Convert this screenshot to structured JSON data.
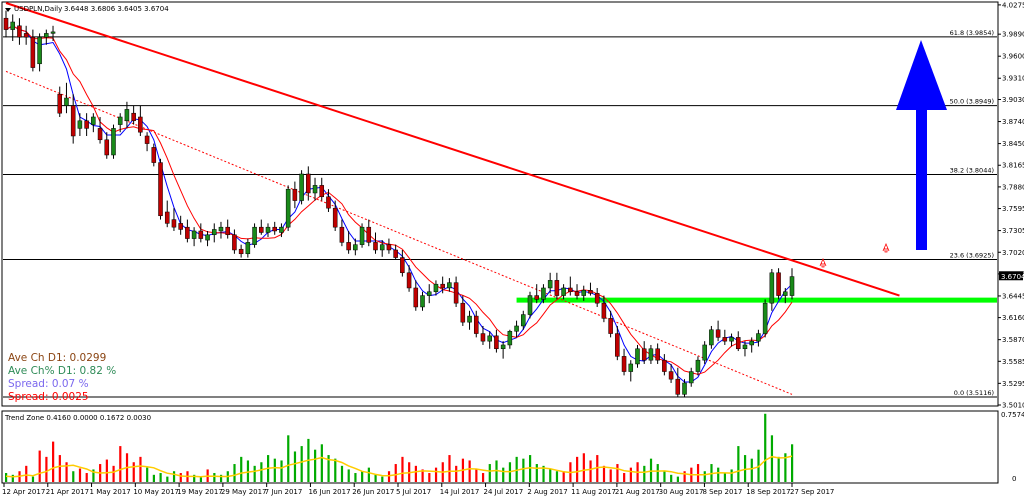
{
  "header": {
    "symbol": "USDPLN,Daily",
    "ohlc": "3.6448 3.6806 3.6405 3.6704"
  },
  "info": {
    "ave_ch": "Ave Ch D1: 0.0299",
    "ave_ch_pct": "Ave Ch% D1: 0.82 %",
    "spread_pct": "Spread: 0.07 %",
    "spread": "Spread: 0.0025"
  },
  "indicator": {
    "label": "Trend Zone 0.4160 0.0000 0.1672 0.0030",
    "max_label": "0.7574",
    "zero_label": "0"
  },
  "colors": {
    "bull": "#1a8a1a",
    "bear": "#c00000",
    "trendline": "#ff0000",
    "support": "#00ff00",
    "arrow": "#0000ff",
    "ma_fast": "#0000ff",
    "ma_slow": "#ff0000",
    "fibo": "#000000",
    "zone_up": "#00aa00",
    "zone_down": "#ff0000",
    "zone_line": "#ffcc00",
    "info_brown": "#8b4513",
    "info_green": "#2e8b57",
    "info_blue": "#7b68ee",
    "info_red": "#ff0000"
  },
  "chart_data": {
    "type": "candlestick",
    "ylim": [
      3.501,
      4.03
    ],
    "y_ticks": [
      "4.0275",
      "3.9890",
      "3.9600",
      "3.9310",
      "3.9030",
      "3.8740",
      "3.8450",
      "3.8165",
      "3.7880",
      "3.7595",
      "3.7305",
      "3.7020",
      "3.6735",
      "3.6445",
      "3.6160",
      "3.5870",
      "3.5585",
      "3.5295",
      "3.5010"
    ],
    "x_labels": [
      "12 Apr 2017",
      "21 Apr 2017",
      "1 May 2017",
      "10 May 2017",
      "19 May 2017",
      "29 May 2017",
      "7 Jun 2017",
      "16 Jun 2017",
      "26 Jun 2017",
      "5 Jul 2017",
      "14 Jul 2017",
      "24 Jul 2017",
      "2 Aug 2017",
      "11 Aug 2017",
      "21 Aug 2017",
      "30 Aug 2017",
      "8 Sep 2017",
      "18 Sep 2017",
      "27 Sep 2017"
    ],
    "current_price": "3.6704",
    "fibo_levels": [
      {
        "label": "61.8 (3.9854)",
        "price": 3.9854
      },
      {
        "label": "50.0 (3.8949)",
        "price": 3.8949
      },
      {
        "label": "38.2 (3.8044)",
        "price": 3.8044
      },
      {
        "label": "23.6 (3.6925)",
        "price": 3.6925
      },
      {
        "label": "0.0 (3.5116)",
        "price": 3.5116
      }
    ],
    "support_level": 3.639,
    "trendline": {
      "from_bar": 0,
      "from_price": 4.03,
      "to_bar": 133,
      "to_price": 3.645
    },
    "channel_line": {
      "from_bar": 0,
      "from_price": 3.94,
      "to_bar": 117,
      "to_price": 3.515
    },
    "candles_ohlc": [
      [
        4.01,
        4.02,
        3.985,
        3.995
      ],
      [
        3.995,
        4.015,
        3.98,
        4.005
      ],
      [
        4.0,
        4.01,
        3.975,
        3.985
      ],
      [
        3.99,
        4.0,
        3.975,
        3.985
      ],
      [
        3.985,
        3.995,
        3.94,
        3.945
      ],
      [
        3.95,
        3.99,
        3.94,
        3.985
      ],
      [
        3.985,
        3.995,
        3.975,
        3.99
      ],
      [
        3.99,
        4.0,
        3.98,
        3.992
      ],
      [
        3.91,
        3.92,
        3.88,
        3.885
      ],
      [
        3.895,
        3.925,
        3.885,
        3.905
      ],
      [
        3.895,
        3.91,
        3.845,
        3.855
      ],
      [
        3.865,
        3.885,
        3.855,
        3.875
      ],
      [
        3.875,
        3.885,
        3.855,
        3.865
      ],
      [
        3.87,
        3.885,
        3.86,
        3.88
      ],
      [
        3.865,
        3.88,
        3.845,
        3.85
      ],
      [
        3.85,
        3.86,
        3.825,
        3.83
      ],
      [
        3.83,
        3.87,
        3.825,
        3.865
      ],
      [
        3.87,
        3.885,
        3.86,
        3.88
      ],
      [
        3.875,
        3.9,
        3.865,
        3.89
      ],
      [
        3.885,
        3.895,
        3.87,
        3.875
      ],
      [
        3.88,
        3.895,
        3.855,
        3.86
      ],
      [
        3.855,
        3.86,
        3.835,
        3.845
      ],
      [
        3.84,
        3.845,
        3.815,
        3.82
      ],
      [
        3.82,
        3.825,
        3.745,
        3.75
      ],
      [
        3.755,
        3.77,
        3.735,
        3.74
      ],
      [
        3.745,
        3.76,
        3.73,
        3.735
      ],
      [
        3.74,
        3.75,
        3.725,
        3.732
      ],
      [
        3.735,
        3.745,
        3.715,
        3.72
      ],
      [
        3.72,
        3.735,
        3.71,
        3.73
      ],
      [
        3.73,
        3.74,
        3.715,
        3.72
      ],
      [
        3.718,
        3.73,
        3.71,
        3.725
      ],
      [
        3.725,
        3.74,
        3.715,
        3.732
      ],
      [
        3.73,
        3.742,
        3.72,
        3.735
      ],
      [
        3.735,
        3.745,
        3.72,
        3.725
      ],
      [
        3.725,
        3.732,
        3.7,
        3.705
      ],
      [
        3.706,
        3.712,
        3.695,
        3.7
      ],
      [
        3.7,
        3.72,
        3.695,
        3.715
      ],
      [
        3.712,
        3.74,
        3.708,
        3.735
      ],
      [
        3.735,
        3.745,
        3.725,
        3.728
      ],
      [
        3.728,
        3.74,
        3.722,
        3.735
      ],
      [
        3.735,
        3.742,
        3.725,
        3.73
      ],
      [
        3.728,
        3.74,
        3.722,
        3.735
      ],
      [
        3.735,
        3.79,
        3.73,
        3.785
      ],
      [
        3.785,
        3.795,
        3.76,
        3.77
      ],
      [
        3.77,
        3.81,
        3.765,
        3.805
      ],
      [
        3.805,
        3.815,
        3.77,
        3.78
      ],
      [
        3.78,
        3.8,
        3.77,
        3.79
      ],
      [
        3.79,
        3.8,
        3.77,
        3.775
      ],
      [
        3.775,
        3.785,
        3.755,
        3.76
      ],
      [
        3.76,
        3.77,
        3.73,
        3.735
      ],
      [
        3.735,
        3.745,
        3.71,
        3.715
      ],
      [
        3.715,
        3.73,
        3.7,
        3.705
      ],
      [
        3.705,
        3.72,
        3.698,
        3.712
      ],
      [
        3.712,
        3.74,
        3.708,
        3.735
      ],
      [
        3.735,
        3.745,
        3.71,
        3.715
      ],
      [
        3.715,
        3.728,
        3.7,
        3.705
      ],
      [
        3.705,
        3.718,
        3.696,
        3.712
      ],
      [
        3.712,
        3.72,
        3.7,
        3.705
      ],
      [
        3.705,
        3.712,
        3.692,
        3.695
      ],
      [
        3.695,
        3.705,
        3.67,
        3.675
      ],
      [
        3.675,
        3.685,
        3.65,
        3.655
      ],
      [
        3.655,
        3.665,
        3.625,
        3.63
      ],
      [
        3.63,
        3.65,
        3.625,
        3.645
      ],
      [
        3.645,
        3.66,
        3.635,
        3.65
      ],
      [
        3.65,
        3.665,
        3.645,
        3.66
      ],
      [
        3.66,
        3.67,
        3.648,
        3.655
      ],
      [
        3.655,
        3.668,
        3.65,
        3.662
      ],
      [
        3.662,
        3.67,
        3.63,
        3.635
      ],
      [
        3.635,
        3.645,
        3.605,
        3.61
      ],
      [
        3.61,
        3.625,
        3.6,
        3.618
      ],
      [
        3.618,
        3.625,
        3.59,
        3.595
      ],
      [
        3.595,
        3.605,
        3.58,
        3.585
      ],
      [
        3.585,
        3.598,
        3.575,
        3.592
      ],
      [
        3.592,
        3.6,
        3.57,
        3.575
      ],
      [
        3.575,
        3.585,
        3.562,
        3.58
      ],
      [
        3.58,
        3.6,
        3.575,
        3.598
      ],
      [
        3.598,
        3.612,
        3.59,
        3.605
      ],
      [
        3.605,
        3.625,
        3.6,
        3.62
      ],
      [
        3.62,
        3.65,
        3.615,
        3.645
      ],
      [
        3.645,
        3.66,
        3.635,
        3.64
      ],
      [
        3.64,
        3.66,
        3.635,
        3.655
      ],
      [
        3.655,
        3.675,
        3.648,
        3.665
      ],
      [
        3.665,
        3.675,
        3.64,
        3.645
      ],
      [
        3.645,
        3.66,
        3.64,
        3.655
      ],
      [
        3.655,
        3.67,
        3.645,
        3.65
      ],
      [
        3.65,
        3.66,
        3.64,
        3.645
      ],
      [
        3.645,
        3.658,
        3.638,
        3.652
      ],
      [
        3.652,
        3.662,
        3.645,
        3.648
      ],
      [
        3.648,
        3.655,
        3.63,
        3.635
      ],
      [
        3.635,
        3.645,
        3.61,
        3.615
      ],
      [
        3.615,
        3.625,
        3.59,
        3.595
      ],
      [
        3.595,
        3.605,
        3.56,
        3.565
      ],
      [
        3.565,
        3.575,
        3.54,
        3.545
      ],
      [
        3.545,
        3.56,
        3.532,
        3.555
      ],
      [
        3.555,
        3.58,
        3.55,
        3.575
      ],
      [
        3.575,
        3.585,
        3.555,
        3.56
      ],
      [
        3.56,
        3.58,
        3.555,
        3.575
      ],
      [
        3.575,
        3.582,
        3.555,
        3.56
      ],
      [
        3.56,
        3.568,
        3.54,
        3.545
      ],
      [
        3.545,
        3.555,
        3.53,
        3.535
      ],
      [
        3.535,
        3.55,
        3.512,
        3.515
      ],
      [
        3.515,
        3.535,
        3.512,
        3.53
      ],
      [
        3.53,
        3.55,
        3.525,
        3.545
      ],
      [
        3.545,
        3.565,
        3.54,
        3.56
      ],
      [
        3.56,
        3.585,
        3.555,
        3.58
      ],
      [
        3.58,
        3.605,
        3.575,
        3.6
      ],
      [
        3.6,
        3.612,
        3.585,
        3.59
      ],
      [
        3.59,
        3.6,
        3.58,
        3.585
      ],
      [
        3.585,
        3.595,
        3.578,
        3.59
      ],
      [
        3.59,
        3.598,
        3.572,
        3.575
      ],
      [
        3.575,
        3.585,
        3.565,
        3.58
      ],
      [
        3.58,
        3.59,
        3.57,
        3.585
      ],
      [
        3.585,
        3.6,
        3.578,
        3.595
      ],
      [
        3.595,
        3.64,
        3.59,
        3.635
      ],
      [
        3.635,
        3.68,
        3.625,
        3.675
      ],
      [
        3.675,
        3.681,
        3.64,
        3.645
      ],
      [
        3.645,
        3.655,
        3.635,
        3.65
      ],
      [
        3.645,
        3.681,
        3.64,
        3.67
      ]
    ],
    "zone_values": [
      [
        0.1,
        0.0
      ],
      [
        0.08,
        0.0
      ],
      [
        0.0,
        0.12
      ],
      [
        0.0,
        0.18
      ],
      [
        0.06,
        0.0
      ],
      [
        0.0,
        0.35
      ],
      [
        0.0,
        0.28
      ],
      [
        0.0,
        0.45
      ],
      [
        0.0,
        0.3
      ],
      [
        0.0,
        0.22
      ],
      [
        0.12,
        0.0
      ],
      [
        0.0,
        0.15
      ],
      [
        0.0,
        0.1
      ],
      [
        0.14,
        0.0
      ],
      [
        0.0,
        0.2
      ],
      [
        0.0,
        0.25
      ],
      [
        0.0,
        0.18
      ],
      [
        0.0,
        0.4
      ],
      [
        0.0,
        0.32
      ],
      [
        0.0,
        0.22
      ],
      [
        0.0,
        0.28
      ],
      [
        0.16,
        0.0
      ],
      [
        0.08,
        0.0
      ],
      [
        0.1,
        0.0
      ],
      [
        0.06,
        0.0
      ],
      [
        0.12,
        0.0
      ],
      [
        0.0,
        0.1
      ],
      [
        0.0,
        0.12
      ],
      [
        0.08,
        0.0
      ],
      [
        0.05,
        0.0
      ],
      [
        0.0,
        0.14
      ],
      [
        0.1,
        0.0
      ],
      [
        0.08,
        0.0
      ],
      [
        0.12,
        0.0
      ],
      [
        0.2,
        0.0
      ],
      [
        0.28,
        0.0
      ],
      [
        0.24,
        0.0
      ],
      [
        0.18,
        0.0
      ],
      [
        0.22,
        0.0
      ],
      [
        0.3,
        0.0
      ],
      [
        0.26,
        0.0
      ],
      [
        0.24,
        0.0
      ],
      [
        0.52,
        0.0
      ],
      [
        0.34,
        0.0
      ],
      [
        0.4,
        0.0
      ],
      [
        0.48,
        0.0
      ],
      [
        0.36,
        0.0
      ],
      [
        0.42,
        0.0
      ],
      [
        0.3,
        0.0
      ],
      [
        0.26,
        0.0
      ],
      [
        0.18,
        0.0
      ],
      [
        0.14,
        0.0
      ],
      [
        0.1,
        0.0
      ],
      [
        0.12,
        0.0
      ],
      [
        0.16,
        0.0
      ],
      [
        0.08,
        0.0
      ],
      [
        0.06,
        0.0
      ],
      [
        0.0,
        0.12
      ],
      [
        0.0,
        0.2
      ],
      [
        0.0,
        0.28
      ],
      [
        0.0,
        0.22
      ],
      [
        0.0,
        0.18
      ],
      [
        0.0,
        0.14
      ],
      [
        0.0,
        0.1
      ],
      [
        0.0,
        0.16
      ],
      [
        0.0,
        0.22
      ],
      [
        0.0,
        0.3
      ],
      [
        0.0,
        0.18
      ],
      [
        0.0,
        0.26
      ],
      [
        0.0,
        0.24
      ],
      [
        0.0,
        0.14
      ],
      [
        0.0,
        0.1
      ],
      [
        0.2,
        0.0
      ],
      [
        0.24,
        0.0
      ],
      [
        0.16,
        0.0
      ],
      [
        0.22,
        0.0
      ],
      [
        0.28,
        0.0
      ],
      [
        0.26,
        0.0
      ],
      [
        0.3,
        0.0
      ],
      [
        0.2,
        0.0
      ],
      [
        0.18,
        0.0
      ],
      [
        0.14,
        0.0
      ],
      [
        0.12,
        0.0
      ],
      [
        0.0,
        0.12
      ],
      [
        0.0,
        0.22
      ],
      [
        0.0,
        0.28
      ],
      [
        0.0,
        0.32
      ],
      [
        0.0,
        0.24
      ],
      [
        0.0,
        0.3
      ],
      [
        0.0,
        0.18
      ],
      [
        0.0,
        0.14
      ],
      [
        0.0,
        0.2
      ],
      [
        0.0,
        0.1
      ],
      [
        0.0,
        0.16
      ],
      [
        0.0,
        0.22
      ],
      [
        0.18,
        0.0
      ],
      [
        0.26,
        0.0
      ],
      [
        0.2,
        0.0
      ],
      [
        0.12,
        0.0
      ],
      [
        0.08,
        0.0
      ],
      [
        0.06,
        0.0
      ],
      [
        0.0,
        0.12
      ],
      [
        0.0,
        0.16
      ],
      [
        0.0,
        0.2
      ],
      [
        0.12,
        0.0
      ],
      [
        0.2,
        0.0
      ],
      [
        0.16,
        0.0
      ],
      [
        0.1,
        0.0
      ],
      [
        0.14,
        0.0
      ],
      [
        0.4,
        0.0
      ],
      [
        0.3,
        0.0
      ],
      [
        0.26,
        0.0
      ],
      [
        0.36,
        0.0
      ],
      [
        0.76,
        0.0
      ],
      [
        0.52,
        0.0
      ],
      [
        0.28,
        0.0
      ],
      [
        0.32,
        0.0
      ],
      [
        0.42,
        0.0
      ]
    ]
  }
}
